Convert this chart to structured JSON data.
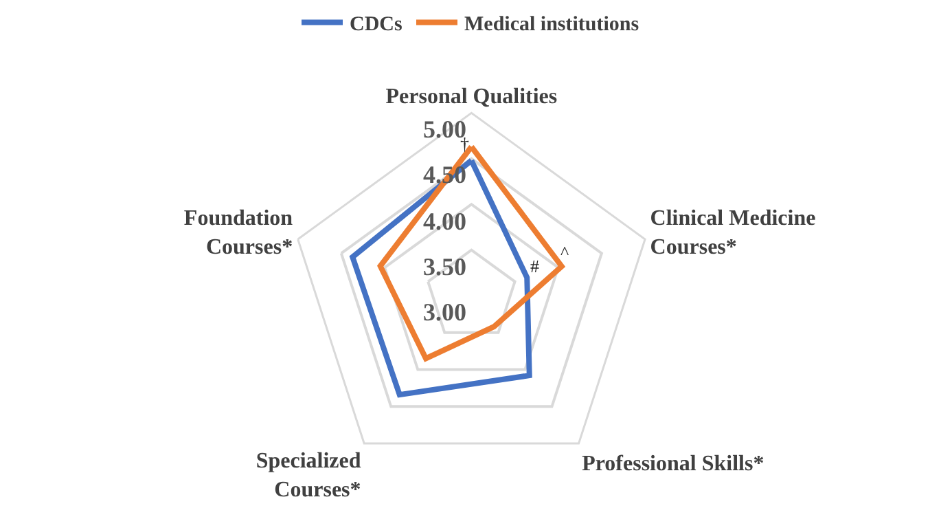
{
  "chart_data": {
    "type": "radar",
    "categories": [
      "Personal Qualities",
      "Clinical Medicine\nCourses*",
      "Professional Skills*",
      "Specialized\nCourses*",
      "Foundation\nCourses*"
    ],
    "series": [
      {
        "name": "CDCs",
        "color": "#4472c4",
        "values": [
          4.48,
          3.64,
          4.08,
          4.34,
          4.37
        ]
      },
      {
        "name": "Medical institutions",
        "color": "#ed7d31",
        "values": [
          4.63,
          4.04,
          3.42,
          3.85,
          4.05
        ]
      }
    ],
    "ylim": [
      3,
      5
    ],
    "yticks": [
      {
        "value": 3,
        "label": "3.00"
      },
      {
        "value": 3.5,
        "label": "3.50"
      },
      {
        "value": 4,
        "label": "4.00"
      },
      {
        "value": 4.5,
        "label": "4.50"
      },
      {
        "value": 5,
        "label": "5.00"
      }
    ],
    "annotations": [
      "†",
      "#",
      "^"
    ],
    "grid": true,
    "legend": "top",
    "marker": "none",
    "line_style": "solid"
  }
}
